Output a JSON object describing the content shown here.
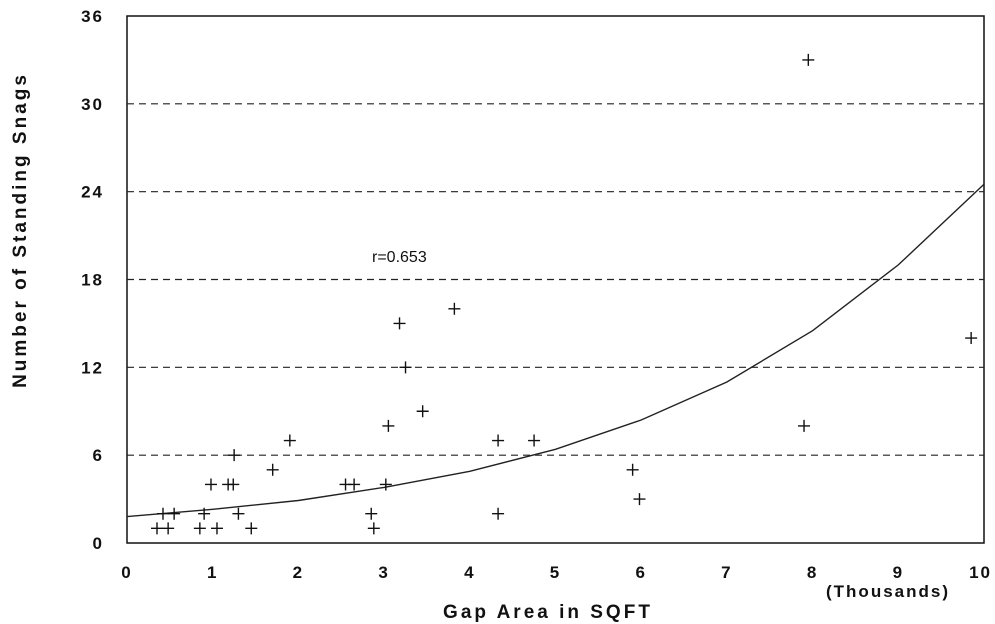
{
  "chart_data": {
    "type": "scatter",
    "title": "",
    "xlabel": "Gap Area in SQFT",
    "xunit_label": "(Thousands)",
    "ylabel": "Number of Standing Snags",
    "xlim": [
      0,
      10
    ],
    "ylim": [
      0,
      36
    ],
    "x_ticks": [
      "0",
      "1",
      "2",
      "3",
      "4",
      "5",
      "6",
      "7",
      "8",
      "9",
      "10"
    ],
    "y_ticks": [
      "0",
      "6",
      "12",
      "18",
      "24",
      "30",
      "36"
    ],
    "grid": "horizontal dashed",
    "annotation": "r=0.653",
    "marker": "plus",
    "points": [
      {
        "x": 0.35,
        "y": 1
      },
      {
        "x": 0.42,
        "y": 2
      },
      {
        "x": 0.48,
        "y": 1
      },
      {
        "x": 0.55,
        "y": 2
      },
      {
        "x": 0.85,
        "y": 1
      },
      {
        "x": 0.9,
        "y": 2
      },
      {
        "x": 0.98,
        "y": 4
      },
      {
        "x": 1.05,
        "y": 1
      },
      {
        "x": 1.18,
        "y": 4
      },
      {
        "x": 1.24,
        "y": 4
      },
      {
        "x": 1.25,
        "y": 6
      },
      {
        "x": 1.3,
        "y": 2
      },
      {
        "x": 1.45,
        "y": 1
      },
      {
        "x": 1.7,
        "y": 5
      },
      {
        "x": 1.9,
        "y": 7
      },
      {
        "x": 2.55,
        "y": 4
      },
      {
        "x": 2.65,
        "y": 4
      },
      {
        "x": 2.85,
        "y": 2
      },
      {
        "x": 2.88,
        "y": 1
      },
      {
        "x": 3.02,
        "y": 4
      },
      {
        "x": 3.05,
        "y": 8
      },
      {
        "x": 3.18,
        "y": 15
      },
      {
        "x": 3.25,
        "y": 12
      },
      {
        "x": 3.45,
        "y": 9
      },
      {
        "x": 3.82,
        "y": 16
      },
      {
        "x": 4.33,
        "y": 7
      },
      {
        "x": 4.33,
        "y": 2
      },
      {
        "x": 4.75,
        "y": 7
      },
      {
        "x": 5.9,
        "y": 5
      },
      {
        "x": 5.98,
        "y": 3
      },
      {
        "x": 7.9,
        "y": 8
      },
      {
        "x": 7.95,
        "y": 33
      },
      {
        "x": 9.85,
        "y": 14
      }
    ],
    "trend_line": {
      "type": "exponential",
      "points": [
        {
          "x": 0,
          "y": 1.8
        },
        {
          "x": 1,
          "y": 2.3
        },
        {
          "x": 2,
          "y": 2.9
        },
        {
          "x": 3,
          "y": 3.8
        },
        {
          "x": 4,
          "y": 4.9
        },
        {
          "x": 5,
          "y": 6.4
        },
        {
          "x": 6,
          "y": 8.4
        },
        {
          "x": 7,
          "y": 11
        },
        {
          "x": 8,
          "y": 14.5
        },
        {
          "x": 9,
          "y": 19
        },
        {
          "x": 10,
          "y": 24.5
        }
      ]
    }
  }
}
